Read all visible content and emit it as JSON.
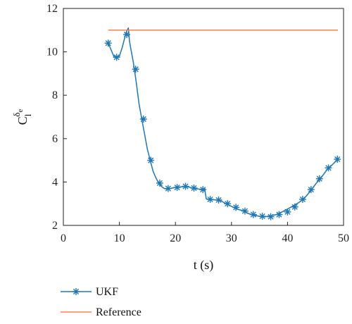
{
  "chart_data": {
    "type": "line",
    "xlabel": "t (s)",
    "ylabel_base": "C",
    "ylabel_sub": "l",
    "ylabel_sup": "δ",
    "ylabel_sup_sub": "e",
    "xlim": [
      0,
      50
    ],
    "ylim": [
      2,
      12
    ],
    "xticks": [
      0,
      10,
      20,
      30,
      40,
      50
    ],
    "yticks": [
      2,
      4,
      6,
      8,
      10,
      12
    ],
    "grid": false,
    "legend_position": "bottom-left, below axes",
    "series": [
      {
        "name": "UKF",
        "color": "#1f77b4",
        "marker": "asterisk",
        "x": [
          8.0,
          8.5,
          9.0,
          9.5,
          10.0,
          10.5,
          11.0,
          11.3,
          11.6,
          11.8,
          12.0,
          12.5,
          13.0,
          13.5,
          14.0,
          14.5,
          15.0,
          15.5,
          16.0,
          16.5,
          17.0,
          17.5,
          18.0,
          18.5,
          19.0,
          20.0,
          21.0,
          22.0,
          23.0,
          24.0,
          24.9,
          25.2,
          25.5,
          26.0,
          27.0,
          28.0,
          29.0,
          30.0,
          31.0,
          32.0,
          33.0,
          34.0,
          35.0,
          36.0,
          37.0,
          38.0,
          39.0,
          40.0,
          41.0,
          42.0,
          43.0,
          44.0,
          45.0,
          46.0,
          47.0,
          48.0,
          49.0
        ],
        "y": [
          10.4,
          10.1,
          9.8,
          9.7,
          9.8,
          10.2,
          10.7,
          10.95,
          11.1,
          10.5,
          10.2,
          9.5,
          8.6,
          7.6,
          6.9,
          6.2,
          5.5,
          5.0,
          4.5,
          4.2,
          3.95,
          3.8,
          3.7,
          3.68,
          3.7,
          3.75,
          3.78,
          3.8,
          3.72,
          3.68,
          3.65,
          3.7,
          3.22,
          3.2,
          3.18,
          3.15,
          3.0,
          2.88,
          2.75,
          2.68,
          2.55,
          2.47,
          2.42,
          2.4,
          2.44,
          2.5,
          2.62,
          2.75,
          2.9,
          3.05,
          3.25,
          3.55,
          3.9,
          4.2,
          4.55,
          4.8,
          5.05
        ],
        "markers_x": [
          8.0,
          9.5,
          11.3,
          12.9,
          14.3,
          15.6,
          17.2,
          18.7,
          20.3,
          21.8,
          23.3,
          24.9,
          26.2,
          27.7,
          29.3,
          30.8,
          32.4,
          33.9,
          35.5,
          37.0,
          38.5,
          40.0,
          41.3,
          42.7,
          44.2,
          45.7,
          47.3,
          48.9
        ],
        "markers_y": [
          10.4,
          9.75,
          10.8,
          9.2,
          6.9,
          5.0,
          3.95,
          3.7,
          3.75,
          3.8,
          3.72,
          3.65,
          3.2,
          3.17,
          3.0,
          2.83,
          2.66,
          2.5,
          2.42,
          2.4,
          2.5,
          2.62,
          2.85,
          3.2,
          3.65,
          4.15,
          4.65,
          5.05
        ]
      },
      {
        "name": "Reference",
        "color": "#ff7f50",
        "marker": "none",
        "x": [
          8,
          49
        ],
        "y": [
          11,
          11
        ]
      }
    ]
  }
}
